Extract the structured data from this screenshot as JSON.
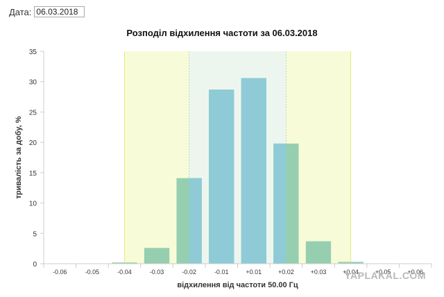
{
  "date_field": {
    "label": "Дата:",
    "value": "06.03.2018"
  },
  "watermark": "YAPLAKAL.COM",
  "chart_data": {
    "type": "bar",
    "title": "Розподіл відхилення частоти за 06.03.2018",
    "xlabel": "відхилення від частоти 50.00 Гц",
    "ylabel": "тривалість за добу, %",
    "categories": [
      "-0.06",
      "-0.05",
      "-0.04",
      "-0.03",
      "-0.02",
      "-0.01",
      "+0.01",
      "+0.02",
      "+0.03",
      "+0.04",
      "+0.05",
      "+0.06"
    ],
    "values": [
      0,
      0,
      0.2,
      2.6,
      14.1,
      28.7,
      30.6,
      19.8,
      3.7,
      0.3,
      0,
      0
    ],
    "ylim": [
      0,
      35
    ],
    "yticks": [
      0,
      5,
      10,
      15,
      20,
      25,
      30,
      35
    ],
    "grid": false,
    "bands": [
      {
        "from": "-0.04",
        "to": "+0.04",
        "color": "#f8fbd8",
        "line": "#e2ea7a"
      },
      {
        "from": "-0.02",
        "to": "+0.02",
        "color": "#edf6ee",
        "line": "#b6d8b9"
      }
    ],
    "colors": {
      "bar_inner": "#8ecbd6",
      "bar_outer": "#96cfb0",
      "axis": "#cccccc",
      "text": "#333333"
    }
  }
}
